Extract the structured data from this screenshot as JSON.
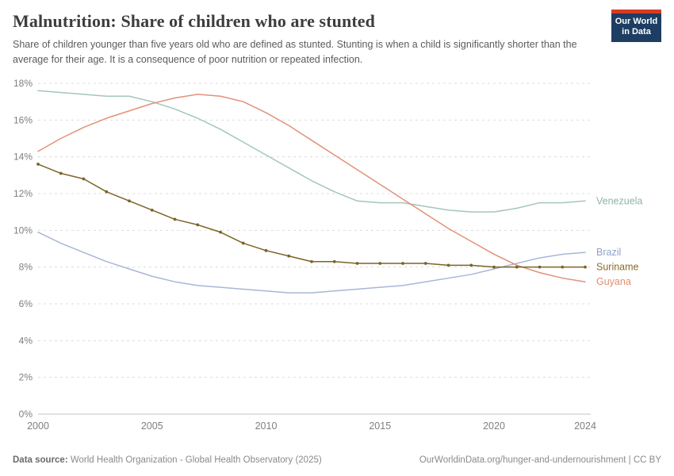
{
  "header": {
    "title": "Malnutrition: Share of children who are stunted",
    "subtitle": "Share of children younger than five years old who are defined as stunted. Stunting is when a child is significantly shorter than the average for their age. It is a consequence of poor nutrition or repeated infection."
  },
  "logo": {
    "line1": "Our World",
    "line2": "in Data",
    "bg_color": "#1d3d63",
    "accent_color": "#d83b23"
  },
  "footer": {
    "source_label": "Data source:",
    "source_text": "World Health Organization - Global Health Observatory (2025)",
    "credit": "OurWorldinData.org/hunger-and-undernourishment | CC BY"
  },
  "chart_data": {
    "type": "line",
    "title": "Malnutrition: Share of children who are stunted",
    "xlabel": "",
    "ylabel": "",
    "ylim": [
      0,
      18
    ],
    "grid": true,
    "legend_position": "right-end-labels",
    "y_ticks": [
      0,
      2,
      4,
      6,
      8,
      10,
      12,
      14,
      16,
      18
    ],
    "y_tick_suffix": "%",
    "x_ticks": [
      2000,
      2005,
      2010,
      2015,
      2020,
      2024
    ],
    "x": [
      2000,
      2001,
      2002,
      2003,
      2004,
      2005,
      2006,
      2007,
      2008,
      2009,
      2010,
      2011,
      2012,
      2013,
      2014,
      2015,
      2016,
      2017,
      2018,
      2019,
      2020,
      2021,
      2022,
      2023,
      2024
    ],
    "series": [
      {
        "name": "Venezuela",
        "color": "#a4c6bb",
        "label_color": "#8db4a8",
        "marker": false,
        "values": [
          17.6,
          17.5,
          17.4,
          17.3,
          17.3,
          17.0,
          16.6,
          16.1,
          15.5,
          14.8,
          14.1,
          13.4,
          12.7,
          12.1,
          11.6,
          11.5,
          11.5,
          11.3,
          11.1,
          11.0,
          11.0,
          11.2,
          11.5,
          11.5,
          11.6
        ]
      },
      {
        "name": "Brazil",
        "color": "#a7b7d6",
        "label_color": "#8fa3c9",
        "marker": false,
        "values": [
          9.9,
          9.3,
          8.8,
          8.3,
          7.9,
          7.5,
          7.2,
          7.0,
          6.9,
          6.8,
          6.7,
          6.6,
          6.6,
          6.7,
          6.8,
          6.9,
          7.0,
          7.2,
          7.4,
          7.6,
          7.9,
          8.2,
          8.5,
          8.7,
          8.8
        ]
      },
      {
        "name": "Guyana",
        "color": "#e29179",
        "label_color": "#df8e6c",
        "marker": false,
        "values": [
          14.3,
          15.0,
          15.6,
          16.1,
          16.5,
          16.9,
          17.2,
          17.4,
          17.3,
          17.0,
          16.4,
          15.7,
          14.9,
          14.1,
          13.3,
          12.5,
          11.7,
          10.9,
          10.1,
          9.4,
          8.7,
          8.1,
          7.7,
          7.4,
          7.2
        ]
      },
      {
        "name": "Suriname",
        "color": "#7b6428",
        "label_color": "#8d6a2a",
        "marker": true,
        "values": [
          13.6,
          13.1,
          12.8,
          12.1,
          11.6,
          11.1,
          10.6,
          10.3,
          9.9,
          9.3,
          8.9,
          8.6,
          8.3,
          8.3,
          8.2,
          8.2,
          8.2,
          8.2,
          8.1,
          8.1,
          8.0,
          8.0,
          8.0,
          8.0,
          8.0
        ]
      }
    ]
  }
}
